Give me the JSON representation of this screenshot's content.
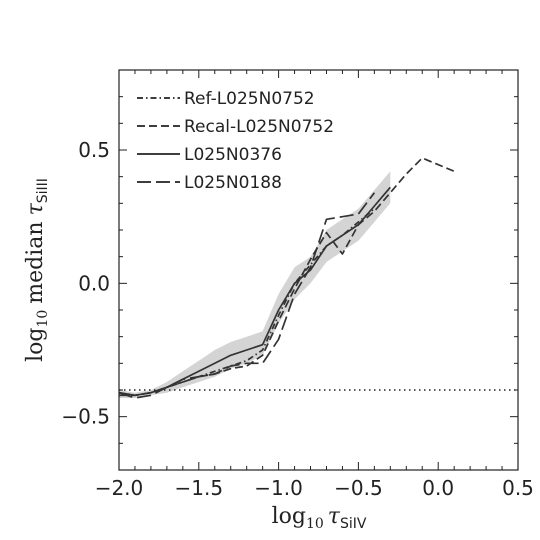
{
  "chart_data": {
    "type": "line",
    "title": "",
    "xlabel": {
      "base": "log",
      "sub": "10",
      "sym": "τ",
      "ion": "SiIV"
    },
    "ylabel": {
      "base": "log",
      "sub": "10",
      "word": "median",
      "sym": "τ",
      "ion": "SiIII"
    },
    "xlim": [
      -2.0,
      0.5
    ],
    "ylim": [
      -0.7,
      0.8
    ],
    "x_ticks": [
      -2.0,
      -1.5,
      -1.0,
      -0.5,
      0.0,
      0.5
    ],
    "x_tick_labels": [
      "−2.0",
      "−1.5",
      "−1.0",
      "−0.5",
      "0.0",
      "0.5"
    ],
    "y_ticks": [
      -0.5,
      0.0,
      0.5
    ],
    "y_tick_labels": [
      "−0.5",
      "0.0",
      "0.5"
    ],
    "grid": false,
    "legend_position": "top-left",
    "reference_line": {
      "y": -0.4,
      "style": "dotted"
    },
    "series": [
      {
        "name": "Ref-L025N0752",
        "style": "dashdot",
        "x": [
          -2.0,
          -1.9,
          -1.8,
          -1.7,
          -1.6,
          -1.5,
          -1.4,
          -1.3,
          -1.2,
          -1.1,
          -1.0,
          -0.9,
          -0.8,
          -0.7,
          -0.6,
          -0.5,
          -0.4
        ],
        "y": [
          -0.41,
          -0.42,
          -0.41,
          -0.39,
          -0.37,
          -0.35,
          -0.33,
          -0.31,
          -0.29,
          -0.25,
          -0.12,
          0.0,
          0.07,
          0.14,
          0.18,
          0.23,
          0.28
        ]
      },
      {
        "name": "Recal-L025N0752",
        "style": "dashed",
        "x": [
          -2.0,
          -1.9,
          -1.8,
          -1.7,
          -1.6,
          -1.5,
          -1.4,
          -1.3,
          -1.2,
          -1.1,
          -1.0,
          -0.9,
          -0.8,
          -0.7,
          -0.6,
          -0.5,
          -0.4,
          -0.3,
          -0.2,
          -0.1,
          0.1
        ],
        "y": [
          -0.42,
          -0.42,
          -0.41,
          -0.39,
          -0.37,
          -0.35,
          -0.34,
          -0.32,
          -0.31,
          -0.27,
          -0.14,
          -0.02,
          0.09,
          0.19,
          0.11,
          0.22,
          0.27,
          0.34,
          0.41,
          0.47,
          0.42
        ]
      },
      {
        "name": "L025N0376",
        "style": "solid",
        "x": [
          -2.0,
          -1.9,
          -1.8,
          -1.7,
          -1.6,
          -1.5,
          -1.4,
          -1.3,
          -1.2,
          -1.1,
          -1.0,
          -0.9,
          -0.8,
          -0.7,
          -0.6,
          -0.5,
          -0.4,
          -0.3
        ],
        "y": [
          -0.41,
          -0.42,
          -0.41,
          -0.39,
          -0.36,
          -0.33,
          -0.3,
          -0.27,
          -0.25,
          -0.23,
          -0.1,
          0.0,
          0.05,
          0.14,
          0.18,
          0.22,
          0.29,
          0.36
        ]
      },
      {
        "name": "L025N0188",
        "style": "longdash",
        "x": [
          -2.0,
          -1.9,
          -1.8,
          -1.7,
          -1.6,
          -1.5,
          -1.4,
          -1.3,
          -1.2,
          -1.1,
          -1.0,
          -0.9,
          -0.8,
          -0.7,
          -0.6,
          -0.5,
          -0.4
        ],
        "y": [
          -0.41,
          -0.43,
          -0.42,
          -0.39,
          -0.36,
          -0.35,
          -0.34,
          -0.31,
          -0.3,
          -0.3,
          -0.21,
          -0.04,
          0.06,
          0.24,
          0.25,
          0.26,
          0.34
        ]
      }
    ],
    "band": {
      "x": [
        -2.0,
        -1.9,
        -1.8,
        -1.7,
        -1.6,
        -1.5,
        -1.4,
        -1.3,
        -1.2,
        -1.1,
        -1.0,
        -0.9,
        -0.8,
        -0.7,
        -0.6,
        -0.5,
        -0.4,
        -0.3
      ],
      "y_low": [
        -0.43,
        -0.43,
        -0.42,
        -0.41,
        -0.39,
        -0.37,
        -0.35,
        -0.32,
        -0.3,
        -0.27,
        -0.15,
        -0.06,
        0.0,
        0.08,
        0.12,
        0.16,
        0.23,
        0.3
      ],
      "y_high": [
        -0.4,
        -0.41,
        -0.4,
        -0.37,
        -0.33,
        -0.29,
        -0.25,
        -0.22,
        -0.2,
        -0.18,
        -0.04,
        0.06,
        0.1,
        0.2,
        0.24,
        0.28,
        0.35,
        0.42
      ]
    }
  }
}
